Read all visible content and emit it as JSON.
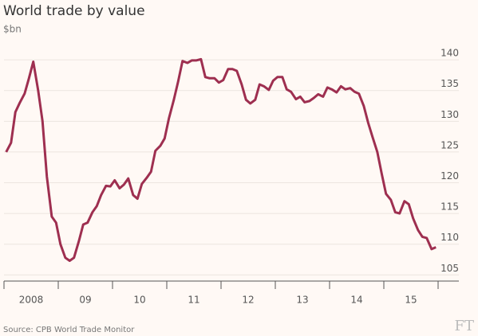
{
  "chart_data": {
    "type": "line",
    "title": "World trade by value",
    "subtitle": "$bn",
    "source": "Source: CPB World Trade Monitor",
    "logo": "FT",
    "xlim": [
      2008,
      2016
    ],
    "xticks": [
      {
        "value": 2008.5,
        "label": "2008"
      },
      {
        "value": 2009.5,
        "label": "09"
      },
      {
        "value": 2010.5,
        "label": "10"
      },
      {
        "value": 2011.5,
        "label": "11"
      },
      {
        "value": 2012.5,
        "label": "12"
      },
      {
        "value": 2013.5,
        "label": "13"
      },
      {
        "value": 2014.5,
        "label": "14"
      },
      {
        "value": 2015.5,
        "label": "15"
      }
    ],
    "ylim": [
      104,
      143
    ],
    "yticks": [
      105,
      110,
      115,
      120,
      125,
      130,
      135,
      140
    ],
    "grid": true,
    "x": [
      2008.04,
      2008.13,
      2008.21,
      2008.29,
      2008.38,
      2008.46,
      2008.54,
      2008.63,
      2008.71,
      2008.79,
      2008.88,
      2008.96,
      2009.04,
      2009.13,
      2009.21,
      2009.29,
      2009.38,
      2009.46,
      2009.54,
      2009.63,
      2009.71,
      2009.79,
      2009.88,
      2009.96,
      2010.04,
      2010.13,
      2010.21,
      2010.29,
      2010.38,
      2010.46,
      2010.54,
      2010.63,
      2010.71,
      2010.79,
      2010.88,
      2010.96,
      2011.04,
      2011.13,
      2011.21,
      2011.29,
      2011.38,
      2011.46,
      2011.54,
      2011.63,
      2011.71,
      2011.79,
      2011.88,
      2011.96,
      2012.04,
      2012.13,
      2012.21,
      2012.29,
      2012.38,
      2012.46,
      2012.54,
      2012.63,
      2012.71,
      2012.79,
      2012.88,
      2012.96,
      2013.04,
      2013.13,
      2013.21,
      2013.29,
      2013.38,
      2013.46,
      2013.54,
      2013.63,
      2013.71,
      2013.79,
      2013.88,
      2013.96,
      2014.04,
      2014.13,
      2014.21,
      2014.29,
      2014.38,
      2014.46,
      2014.54,
      2014.63,
      2014.71,
      2014.79,
      2014.88,
      2014.96,
      2015.04,
      2015.13,
      2015.21,
      2015.29,
      2015.38,
      2015.46,
      2015.54,
      2015.63,
      2015.71,
      2015.79,
      2015.88,
      2015.96
    ],
    "series": [
      {
        "name": "World trade",
        "color": "#9e2f50",
        "values": [
          125,
          126.5,
          131.5,
          133,
          134.5,
          137,
          139.7,
          135,
          130,
          121,
          114.5,
          113.5,
          110,
          107.8,
          107.3,
          107.8,
          110.5,
          113.2,
          113.5,
          115.2,
          116.2,
          118,
          119.5,
          119.4,
          120.4,
          119.1,
          119.7,
          120.7,
          118,
          117.4,
          119.8,
          120.8,
          121.8,
          125.2,
          126,
          127.2,
          130.5,
          133.5,
          136.5,
          139.8,
          139.5,
          139.9,
          139.9,
          140.1,
          137.2,
          137,
          137,
          136.3,
          136.7,
          138.5,
          138.5,
          138.2,
          136,
          133.5,
          132.9,
          133.5,
          136,
          135.7,
          135.1,
          136.6,
          137.2,
          137.2,
          135.2,
          134.8,
          133.6,
          134,
          133.1,
          133.3,
          133.8,
          134.4,
          134,
          135.5,
          135.2,
          134.7,
          135.7,
          135.2,
          135.4,
          134.8,
          134.5,
          132.5,
          129.8,
          127.5,
          125,
          121.5,
          118.2,
          117.2,
          115.2,
          115,
          117,
          116.5,
          114.2,
          112.3,
          111.2,
          111,
          109.2,
          109.5
        ]
      }
    ]
  }
}
